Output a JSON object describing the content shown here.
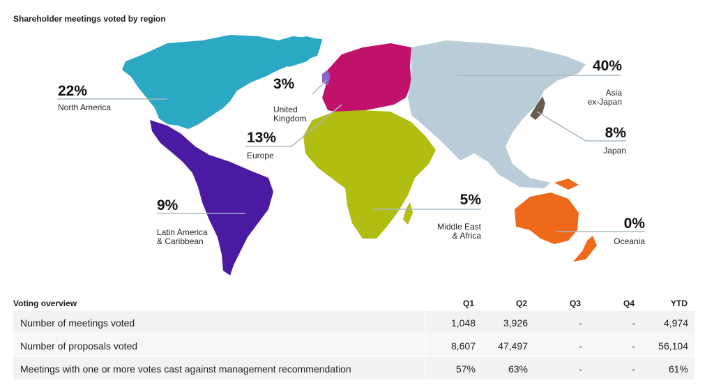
{
  "chart_title": "Shareholder meetings voted by region",
  "colors": {
    "north_america": "#2aa8c4",
    "latin_america": "#4b1aa3",
    "europe": "#c1126b",
    "united_kingdom": "#8a63c8",
    "africa": "#b2bd12",
    "asia": "#b9ccd8",
    "japan": "#6b5a4e",
    "oceania": "#ee6a1a",
    "leader": "#a8b8c4"
  },
  "chart_data": {
    "type": "table",
    "title": "Shareholder meetings voted by region",
    "regions": [
      {
        "name": "North America",
        "percent": "22%"
      },
      {
        "name": "United Kingdom",
        "percent": "3%"
      },
      {
        "name": "Europe",
        "percent": "13%"
      },
      {
        "name": "Latin America & Caribbean",
        "percent": "9%"
      },
      {
        "name": "Asia ex-Japan",
        "percent": "40%"
      },
      {
        "name": "Japan",
        "percent": "8%"
      },
      {
        "name": "Middle East & Africa",
        "percent": "5%"
      },
      {
        "name": "Oceania",
        "percent": "0%"
      }
    ],
    "table": {
      "title": "Voting overview",
      "columns": [
        "Q1",
        "Q2",
        "Q3",
        "Q4",
        "YTD"
      ],
      "rows": [
        {
          "label": "Number of meetings voted",
          "values": [
            "1,048",
            "3,926",
            "-",
            "-",
            "4,974"
          ]
        },
        {
          "label": "Number of proposals voted",
          "values": [
            "8,607",
            "47,497",
            "-",
            "-",
            "56,104"
          ]
        },
        {
          "label": "Meetings with one or more votes cast against management recommendation",
          "values": [
            "57%",
            "63%",
            "-",
            "-",
            "61%"
          ]
        }
      ]
    }
  }
}
